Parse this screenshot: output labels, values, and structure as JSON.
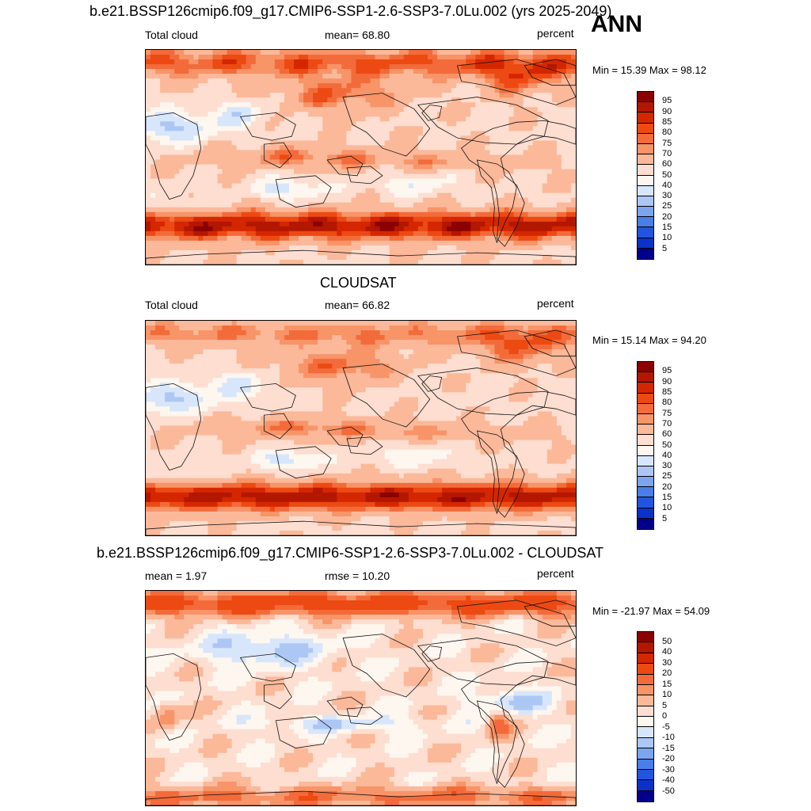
{
  "annotation": "ANN",
  "panels": [
    {
      "title": "b.e21.BSSP126cmip6.f09_g17.CMIP6-SSP1-2.6-SSP3-7.0Lu.002 (yrs 2025-2049)",
      "left_text": "Total cloud",
      "center_text": "mean=  68.80",
      "units": "percent",
      "minmax": "Min =  15.39 Max =  98.12",
      "levels": [
        "95",
        "90",
        "85",
        "80",
        "75",
        "70",
        "60",
        "50",
        "40",
        "30",
        "25",
        "20",
        "15",
        "10",
        "5"
      ],
      "colors": [
        "#8b0000",
        "#b31700",
        "#d42700",
        "#ec4a12",
        "#f36b3a",
        "#f79468",
        "#fbb99a",
        "#fdded0",
        "#fdf7ef",
        "#d8e6fb",
        "#adc7f5",
        "#7da4ef",
        "#4a7ee8",
        "#2255de",
        "#0a31c9",
        "#00008b"
      ],
      "field": "cloud"
    },
    {
      "title": "CLOUDSAT",
      "left_text": "Total cloud",
      "center_text": "mean=  66.82",
      "units": "percent",
      "minmax": "Min =  15.14 Max =  94.20",
      "levels": [
        "95",
        "90",
        "85",
        "80",
        "75",
        "70",
        "60",
        "50",
        "40",
        "30",
        "25",
        "20",
        "15",
        "10",
        "5"
      ],
      "colors": [
        "#8b0000",
        "#b31700",
        "#d42700",
        "#ec4a12",
        "#f36b3a",
        "#f79468",
        "#fbb99a",
        "#fdded0",
        "#fdf7ef",
        "#d8e6fb",
        "#adc7f5",
        "#7da4ef",
        "#4a7ee8",
        "#2255de",
        "#0a31c9",
        "#00008b"
      ],
      "field": "cloudsat"
    },
    {
      "title": "b.e21.BSSP126cmip6.f09_g17.CMIP6-SSP1-2.6-SSP3-7.0Lu.002 - CLOUDSAT",
      "left_text": "mean =   1.97",
      "center_text": "rmse =  10.20",
      "units": "percent",
      "minmax": "Min = -21.97 Max =  54.09",
      "levels": [
        "50",
        "40",
        "30",
        "20",
        "15",
        "10",
        "5",
        "0",
        "-5",
        "-10",
        "-15",
        "-20",
        "-30",
        "-40",
        "-50"
      ],
      "colors": [
        "#8b0000",
        "#b31700",
        "#d42700",
        "#ec4a12",
        "#f36b3a",
        "#f79468",
        "#fbb99a",
        "#fdded0",
        "#fdf7ef",
        "#d8e6fb",
        "#adc7f5",
        "#7da4ef",
        "#4a7ee8",
        "#2255de",
        "#0a31c9",
        "#00008b"
      ],
      "field": "diff"
    }
  ]
}
